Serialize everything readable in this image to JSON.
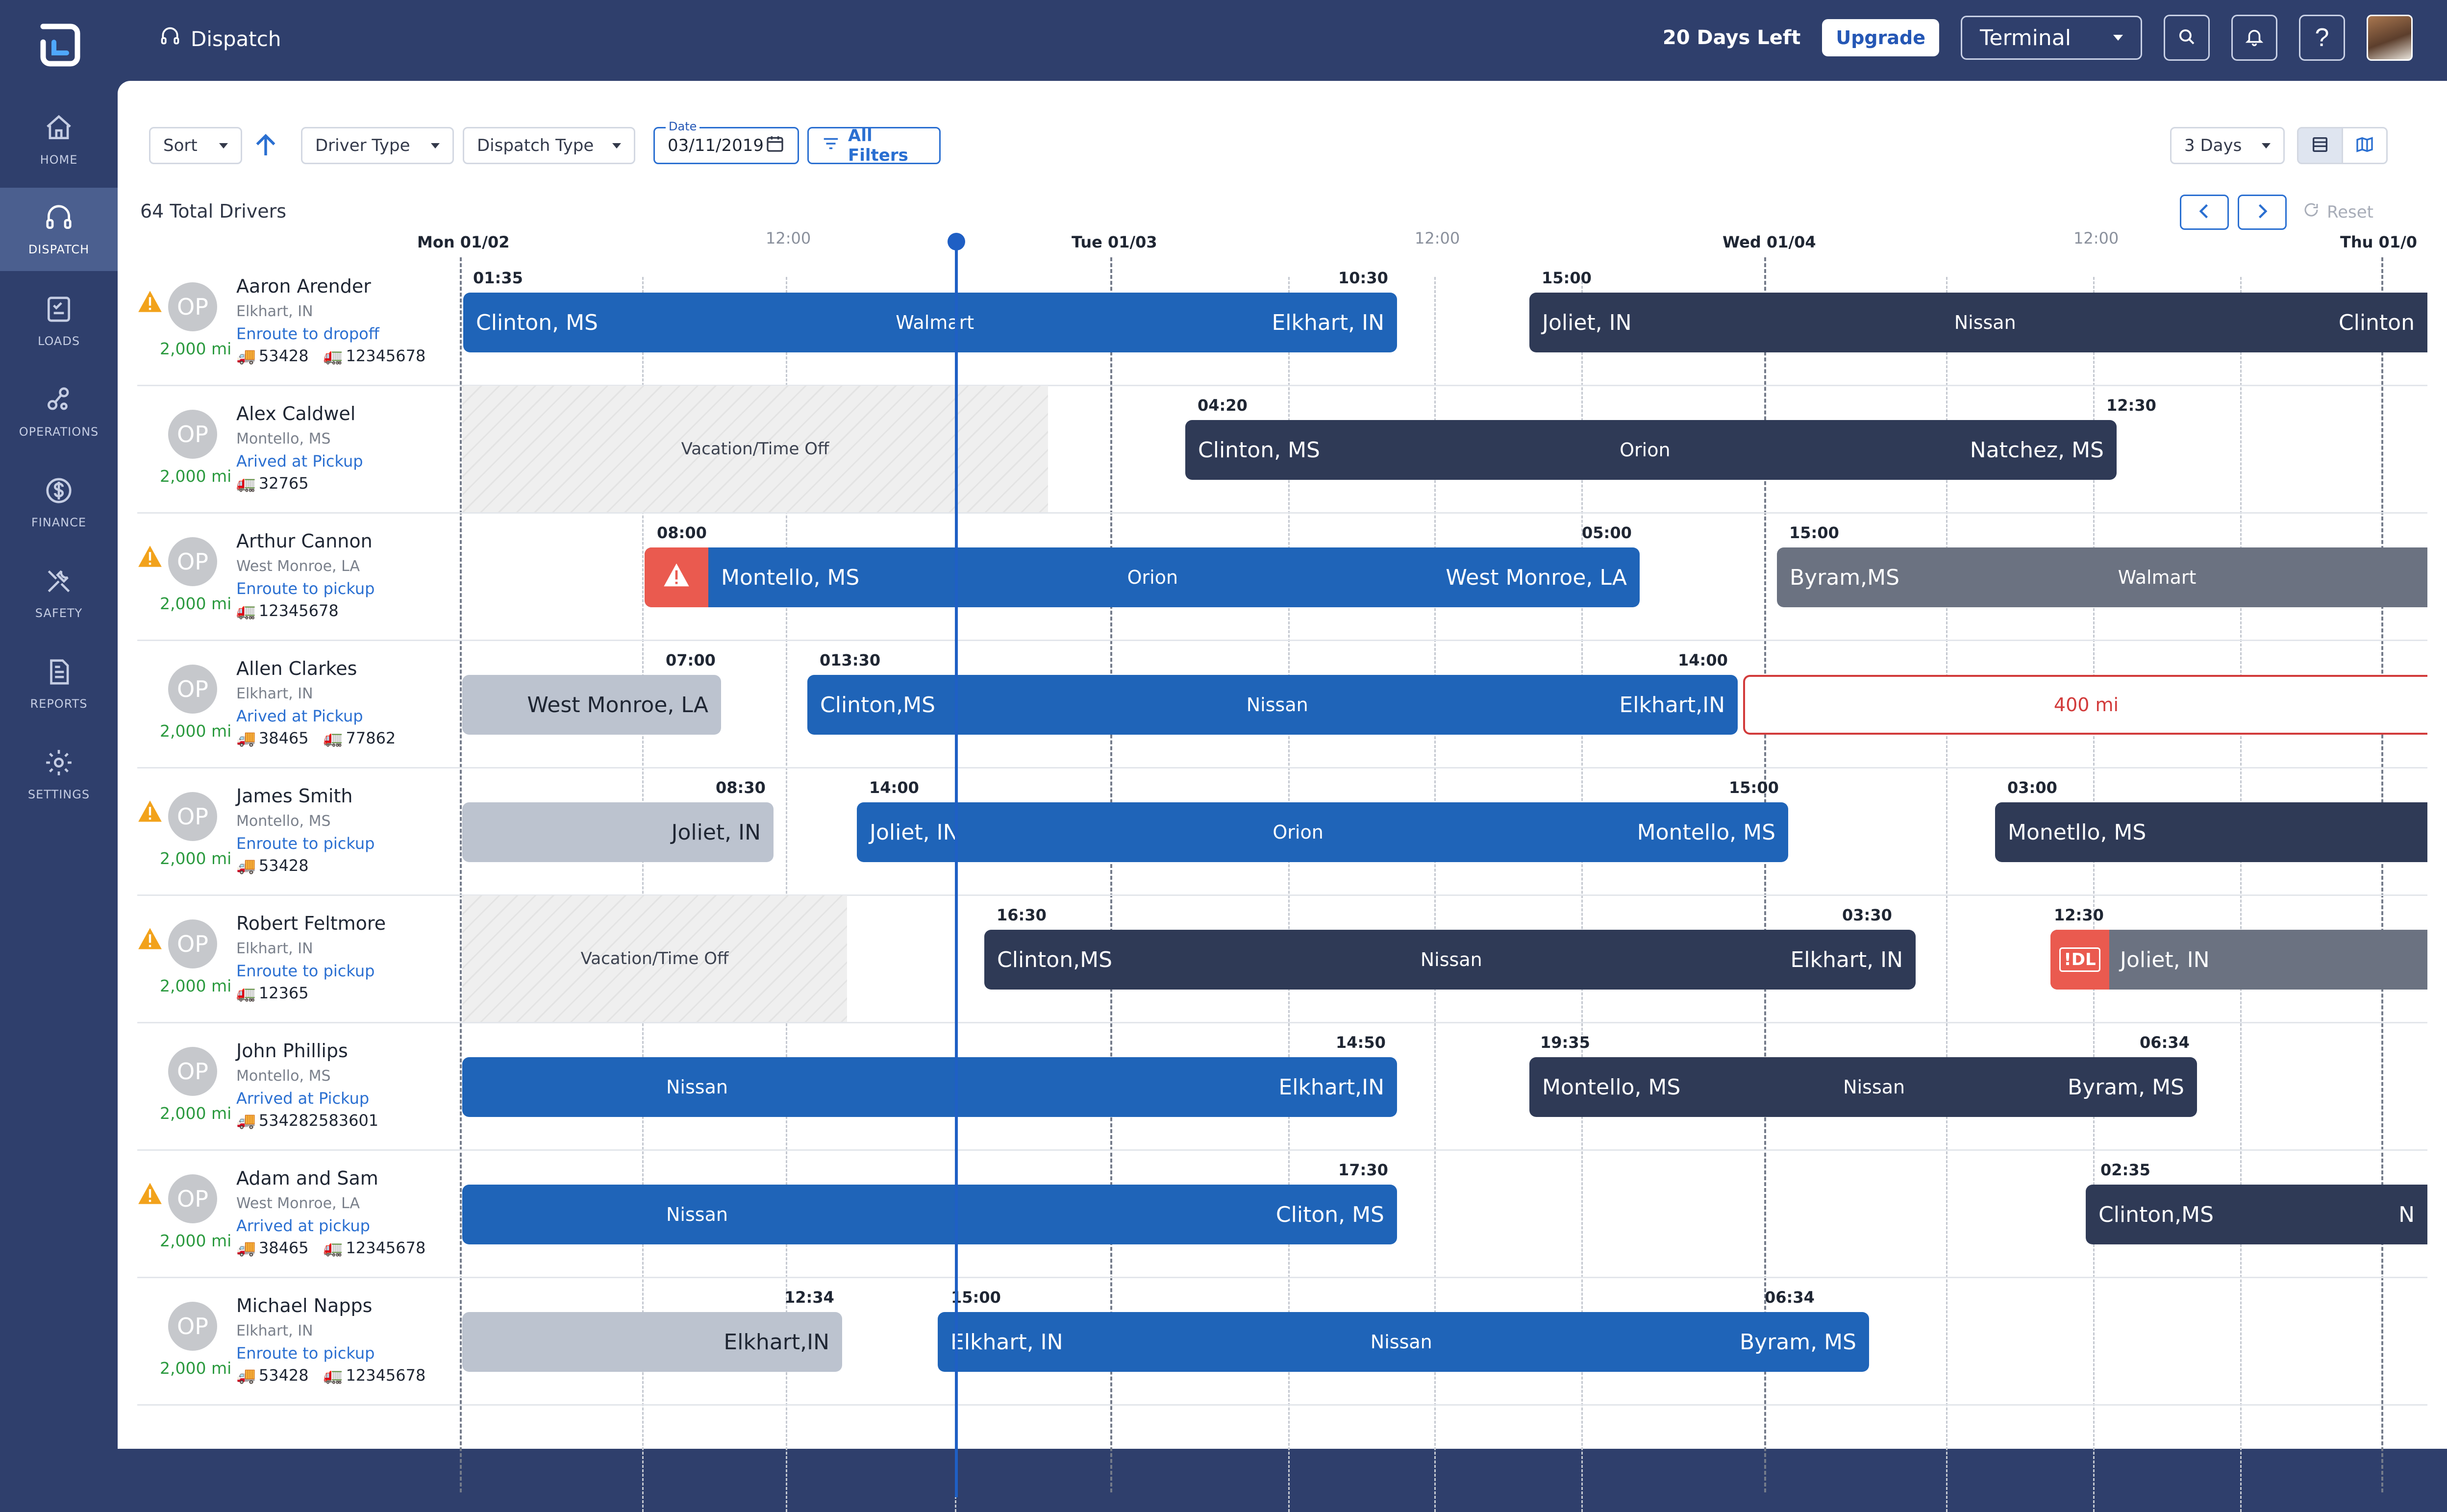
{
  "topbar": {
    "page_title": "Dispatch",
    "days_left": "20 Days Left",
    "upgrade_label": "Upgrade",
    "terminal_label": "Terminal"
  },
  "sidebar": {
    "items": [
      {
        "label": "HOME",
        "icon": "home-icon"
      },
      {
        "label": "DISPATCH",
        "icon": "headset-icon"
      },
      {
        "label": "LOADS",
        "icon": "clipboard-icon"
      },
      {
        "label": "OPERATIONS",
        "icon": "operations-icon"
      },
      {
        "label": "FINANCE",
        "icon": "dollar-icon"
      },
      {
        "label": "SAFETY",
        "icon": "tools-icon"
      },
      {
        "label": "REPORTS",
        "icon": "report-icon"
      },
      {
        "label": "SETTINGS",
        "icon": "gear-icon"
      }
    ]
  },
  "toolbar": {
    "sort_label": "Sort",
    "driver_type_label": "Driver Type",
    "dispatch_type_label": "Dispatch Type",
    "date_label": "Date",
    "date_value": "03/11/2019",
    "all_filters_label": "All Filters",
    "range_label": "3 Days",
    "reset_label": "Reset"
  },
  "summary": {
    "total_drivers": "64 Total Drivers"
  },
  "timeline": {
    "days": [
      "Mon 01/02",
      "Tue 01/03",
      "Wed 01/04",
      "Thu 01/0"
    ],
    "noon_label": "12:00"
  },
  "drivers": [
    {
      "name": "Aaron Arender",
      "location": "Elkhart, IN",
      "status": "Enroute to dropoff",
      "miles": "2,000 mi",
      "truck": "53428",
      "trailer": "12345678",
      "warning": true,
      "loads": [
        {
          "origin": "Clinton, MS",
          "customer": "Walmart",
          "destination": "Elkhart, IN",
          "start": "01:35",
          "end": "10:30",
          "style": "blue"
        },
        {
          "origin": "Joliet, IN",
          "customer": "Nissan",
          "destination": "Clinton",
          "start": "15:00",
          "end": "",
          "style": "navy"
        }
      ]
    },
    {
      "name": "Alex Caldwel",
      "location": "Montello, MS",
      "status": "Arived at Pickup",
      "miles": "2,000 mi",
      "truck": "",
      "trailer": "32765",
      "warning": false,
      "vacation": "Vacation/Time Off",
      "loads": [
        {
          "origin": "Clinton, MS",
          "customer": "Orion",
          "destination": "Natchez, MS",
          "start": "04:20",
          "end": "12:30",
          "style": "navy"
        }
      ]
    },
    {
      "name": "Arthur Cannon",
      "location": "West Monroe, LA",
      "status": "Enroute to pickup",
      "miles": "2,000 mi",
      "truck": "",
      "trailer": "12345678",
      "warning": true,
      "loads": [
        {
          "origin": "Montello, MS",
          "customer": "Orion",
          "destination": "West Monroe, LA",
          "start": "08:00",
          "end": "05:00",
          "style": "blue",
          "alert": true
        },
        {
          "origin": "Byram,MS",
          "customer": "Walmart",
          "destination": "",
          "start": "15:00",
          "end": "",
          "style": "slate"
        }
      ]
    },
    {
      "name": "Allen Clarkes",
      "location": "Elkhart, IN",
      "status": "Arived at Pickup",
      "miles": "2,000 mi",
      "truck": "38465",
      "trailer": "77862",
      "warning": false,
      "loads": [
        {
          "origin": "",
          "customer": "",
          "destination": "West Monroe, LA",
          "start": "",
          "end": "07:00",
          "style": "gray"
        },
        {
          "origin": "Clinton,MS",
          "customer": "Nissan",
          "destination": "Elkhart,IN",
          "start": "013:30",
          "end": "14:00",
          "style": "blue"
        },
        {
          "origin": "",
          "customer": "400 mi",
          "destination": "",
          "start": "",
          "end": "",
          "style": "outline"
        }
      ]
    },
    {
      "name": "James Smith",
      "location": "Montello, MS",
      "status": "Enroute to pickup",
      "miles": "2,000 mi",
      "truck": "53428",
      "trailer": "",
      "warning": true,
      "loads": [
        {
          "origin": "",
          "customer": "",
          "destination": "Joliet, IN",
          "start": "",
          "end": "08:30",
          "style": "gray"
        },
        {
          "origin": "Joliet, IN",
          "customer": "Orion",
          "destination": "Montello, MS",
          "start": "14:00",
          "end": "15:00",
          "style": "blue"
        },
        {
          "origin": "Monetllo, MS",
          "customer": "",
          "destination": "",
          "start": "03:00",
          "end": "",
          "style": "navy"
        }
      ]
    },
    {
      "name": "Robert Feltmore",
      "location": "Elkhart, IN",
      "status": "Enroute to pickup",
      "miles": "2,000 mi",
      "truck": "",
      "trailer": "12365",
      "warning": true,
      "vacation": "Vacation/Time Off",
      "loads": [
        {
          "origin": "Clinton,MS",
          "customer": "Nissan",
          "destination": "Elkhart, IN",
          "start": "16:30",
          "end": "03:30",
          "style": "navy"
        },
        {
          "origin": "Joliet, IN",
          "customer": "",
          "destination": "",
          "start": "12:30",
          "end": "",
          "style": "slate",
          "badge": "!DL"
        }
      ]
    },
    {
      "name": "John Phillips",
      "location": "Montello, MS",
      "status": "Arrived at Pickup",
      "miles": "2,000 mi",
      "truck": "534282583601",
      "trailer": "",
      "warning": false,
      "loads": [
        {
          "origin": "",
          "customer": "Nissan",
          "destination": "Elkhart,IN",
          "start": "",
          "end": "14:50",
          "style": "blue"
        },
        {
          "origin": "Montello, MS",
          "customer": "Nissan",
          "destination": "Byram, MS",
          "start": "19:35",
          "end": "06:34",
          "style": "navy"
        }
      ]
    },
    {
      "name": "Adam and Sam",
      "location": "West Monroe, LA",
      "status": "Arrived at pickup",
      "miles": "2,000 mi",
      "truck": "38465",
      "trailer": "12345678",
      "warning": true,
      "loads": [
        {
          "origin": "",
          "customer": "Nissan",
          "destination": "Cliton, MS",
          "start": "",
          "end": "17:30",
          "style": "blue"
        },
        {
          "origin": "Clinton,MS",
          "customer": "",
          "destination": "N",
          "start": "02:35",
          "end": "",
          "style": "navy"
        }
      ]
    },
    {
      "name": "Michael Napps",
      "location": "Elkhart, IN",
      "status": "Enroute to pickup",
      "miles": "2,000 mi",
      "truck": "53428",
      "trailer": "12345678",
      "warning": false,
      "loads": [
        {
          "origin": "",
          "customer": "",
          "destination": "Elkhart,IN",
          "start": "",
          "end": "12:34",
          "style": "gray"
        },
        {
          "origin": "Elkhart, IN",
          "customer": "Nissan",
          "destination": "Byram, MS",
          "start": "15:00",
          "end": "06:34",
          "style": "blue"
        }
      ]
    }
  ],
  "colors": {
    "sidebar_bg": "#2f3f6c",
    "bar_blue": "#1f64b8",
    "bar_navy": "#2f3a56",
    "bar_gray": "#bcc3cf",
    "alert_red": "#ea5a4f",
    "miles_green": "#2b9a3f",
    "status_blue": "#2a6fd1"
  }
}
